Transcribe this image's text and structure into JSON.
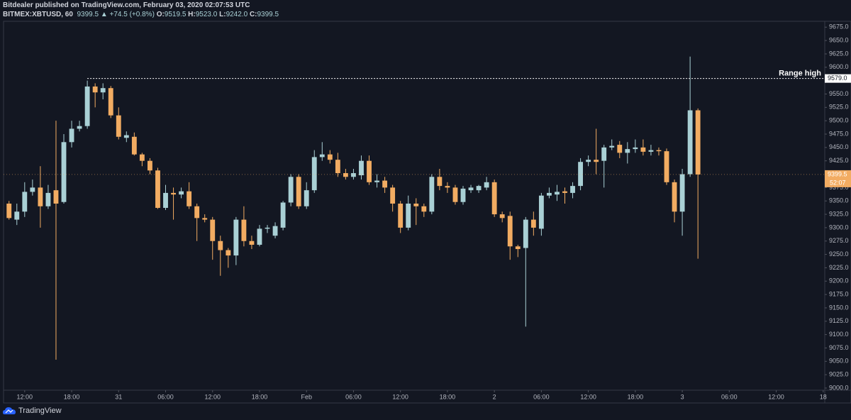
{
  "header": {
    "line1": "Bitdealer published on TradingView.com, February 03, 2020 02:07:53 UTC",
    "symbol": "BITMEX:XBTUSD, 60",
    "last": "9399.5",
    "change": "▲ +74.5 (+0.8%)",
    "ohlc": [
      {
        "k": "O:",
        "v": "9519.5"
      },
      {
        "k": "H:",
        "v": "9523.0"
      },
      {
        "k": "L:",
        "v": "9242.0"
      },
      {
        "k": "C:",
        "v": "9399.5"
      }
    ]
  },
  "footer": {
    "brand": "TradingView"
  },
  "chart_data": {
    "type": "candlestick",
    "up_color": "#a9d0d5",
    "down_color": "#f2ac62",
    "x": [
      10,
      11,
      12,
      13,
      14,
      15,
      16,
      17,
      18,
      19,
      20,
      21,
      22,
      23,
      24,
      25,
      26,
      27,
      28,
      29,
      30,
      31,
      32,
      33,
      34,
      35,
      36,
      37,
      38,
      39,
      40,
      41,
      42,
      43,
      44,
      45,
      46,
      47,
      48,
      49,
      50,
      51,
      52,
      53,
      54,
      55,
      56,
      57,
      58,
      59,
      60,
      61,
      62,
      63,
      64,
      65,
      66,
      67,
      68,
      69,
      70,
      71,
      72,
      73,
      74,
      75,
      76,
      77,
      78,
      79,
      80,
      81,
      82,
      83,
      84,
      85,
      86,
      87,
      88,
      89,
      90,
      91,
      92,
      93,
      94,
      95,
      96,
      97,
      98
    ],
    "open": [
      9345,
      9315,
      9330,
      9367,
      9375,
      9340,
      9370,
      9348,
      9460,
      9485,
      9490,
      9564,
      9553,
      9561,
      9510,
      9468,
      9470,
      9437,
      9425,
      9407,
      9337,
      9365,
      9362,
      9368,
      9340,
      9318,
      9315,
      9275,
      9258,
      9248,
      9315,
      9275,
      9268,
      9298,
      9285,
      9300,
      9347,
      9395,
      9340,
      9370,
      9432,
      9437,
      9427,
      9402,
      9395,
      9398,
      9425,
      9385,
      9388,
      9375,
      9345,
      9300,
      9345,
      9340,
      9330,
      9395,
      9378,
      9375,
      9348,
      9370,
      9370,
      9375,
      9385,
      9325,
      9322,
      9265,
      9262,
      9315,
      9298,
      9360,
      9362,
      9368,
      9365,
      9378,
      9423,
      9427,
      9425,
      9450,
      9455,
      9440,
      9447,
      9450,
      9442,
      9445,
      9443,
      9385,
      9330,
      9400,
      9519.5
    ],
    "high": [
      9350,
      9345,
      9385,
      9390,
      9415,
      9380,
      9500,
      9475,
      9500,
      9500,
      9575,
      9570,
      9570,
      9565,
      9525,
      9480,
      9478,
      9440,
      9430,
      9412,
      9380,
      9375,
      9375,
      9385,
      9345,
      9325,
      9320,
      9285,
      9262,
      9320,
      9340,
      9285,
      9305,
      9305,
      9310,
      9350,
      9400,
      9400,
      9385,
      9445,
      9460,
      9445,
      9440,
      9410,
      9410,
      9435,
      9435,
      9400,
      9395,
      9380,
      9350,
      9360,
      9355,
      9345,
      9400,
      9410,
      9385,
      9380,
      9378,
      9380,
      9380,
      9395,
      9390,
      9330,
      9330,
      9268,
      9320,
      9330,
      9365,
      9375,
      9380,
      9375,
      9385,
      9430,
      9435,
      9485,
      9455,
      9465,
      9462,
      9460,
      9465,
      9465,
      9455,
      9450,
      9448,
      9390,
      9410,
      9620,
      9523
    ],
    "low": [
      9315,
      9305,
      9320,
      9360,
      9300,
      9335,
      9053,
      9345,
      9450,
      9480,
      9485,
      9525,
      9540,
      9505,
      9465,
      9460,
      9435,
      9415,
      9400,
      9335,
      9333,
      9315,
      9355,
      9335,
      9275,
      9310,
      9240,
      9210,
      9225,
      9230,
      9265,
      9260,
      9265,
      9290,
      9280,
      9295,
      9340,
      9335,
      9335,
      9365,
      9425,
      9420,
      9395,
      9390,
      9390,
      9390,
      9380,
      9375,
      9365,
      9330,
      9290,
      9295,
      9305,
      9320,
      9325,
      9370,
      9365,
      9343,
      9343,
      9365,
      9365,
      9370,
      9320,
      9310,
      9240,
      9245,
      9115,
      9285,
      9285,
      9355,
      9350,
      9345,
      9355,
      9370,
      9415,
      9400,
      9375,
      9445,
      9430,
      9420,
      9440,
      9435,
      9435,
      9435,
      9380,
      9310,
      9285,
      9395,
      9242
    ],
    "close": [
      9318,
      9330,
      9367,
      9375,
      9340,
      9365,
      9345,
      9460,
      9485,
      9490,
      9564,
      9553,
      9561,
      9510,
      9470,
      9473,
      9437,
      9425,
      9407,
      9337,
      9365,
      9362,
      9368,
      9340,
      9318,
      9315,
      9275,
      9258,
      9248,
      9315,
      9275,
      9268,
      9298,
      9300,
      9303,
      9347,
      9395,
      9340,
      9370,
      9432,
      9437,
      9427,
      9402,
      9395,
      9402,
      9425,
      9385,
      9388,
      9375,
      9345,
      9300,
      9345,
      9340,
      9330,
      9395,
      9378,
      9375,
      9348,
      9373,
      9375,
      9378,
      9385,
      9325,
      9318,
      9265,
      9260,
      9315,
      9300,
      9360,
      9365,
      9367,
      9365,
      9378,
      9423,
      9427,
      9423,
      9450,
      9453,
      9440,
      9447,
      9450,
      9442,
      9445,
      9443,
      9385,
      9330,
      9400,
      9519.5,
      9399.5
    ],
    "xlim": [
      9.3,
      114.2
    ],
    "xticks": [
      {
        "value": 12,
        "label": "12:00"
      },
      {
        "value": 18,
        "label": "18:00"
      },
      {
        "value": 24,
        "label": "31"
      },
      {
        "value": 30,
        "label": "06:00"
      },
      {
        "value": 36,
        "label": "12:00"
      },
      {
        "value": 42,
        "label": "18:00"
      },
      {
        "value": 48,
        "label": "Feb"
      },
      {
        "value": 54,
        "label": "06:00"
      },
      {
        "value": 60,
        "label": "12:00"
      },
      {
        "value": 66,
        "label": "18:00"
      },
      {
        "value": 72,
        "label": "2"
      },
      {
        "value": 78,
        "label": "06:00"
      },
      {
        "value": 84,
        "label": "12:00"
      },
      {
        "value": 90,
        "label": "18:00"
      },
      {
        "value": 96,
        "label": "3"
      },
      {
        "value": 102,
        "label": "06:00"
      },
      {
        "value": 108,
        "label": "12:00"
      },
      {
        "value": 114,
        "label": "18"
      }
    ],
    "ylim": [
      8996,
      9686
    ],
    "yticks": [
      {
        "value": 9000,
        "label": "9000.0"
      },
      {
        "value": 9025,
        "label": "9025.0"
      },
      {
        "value": 9050,
        "label": "9050.0"
      },
      {
        "value": 9075,
        "label": "9075.0"
      },
      {
        "value": 9100,
        "label": "9100.0"
      },
      {
        "value": 9125,
        "label": "9125.0"
      },
      {
        "value": 9150,
        "label": "9150.0"
      },
      {
        "value": 9175,
        "label": "9175.0"
      },
      {
        "value": 9200,
        "label": "9200.0"
      },
      {
        "value": 9225,
        "label": "9225.0"
      },
      {
        "value": 9250,
        "label": "9250.0"
      },
      {
        "value": 9275,
        "label": "9275.0"
      },
      {
        "value": 9300,
        "label": "9300.0"
      },
      {
        "value": 9325,
        "label": "9325.0"
      },
      {
        "value": 9350,
        "label": "9350.0"
      },
      {
        "value": 9375,
        "label": "9375.0"
      },
      {
        "value": 9400,
        "label": "9400.0"
      },
      {
        "value": 9425,
        "label": "9425.0"
      },
      {
        "value": 9450,
        "label": "9450.0"
      },
      {
        "value": 9475,
        "label": "9475.0"
      },
      {
        "value": 9500,
        "label": "9500.0"
      },
      {
        "value": 9525,
        "label": "9525.0"
      },
      {
        "value": 9550,
        "label": "9550.0"
      },
      {
        "value": 9575,
        "label": "9575.0"
      },
      {
        "value": 9600,
        "label": "9600.0"
      },
      {
        "value": 9625,
        "label": "9625.0"
      },
      {
        "value": 9650,
        "label": "9650.0"
      },
      {
        "value": 9675,
        "label": "9675.0"
      }
    ],
    "range_high": {
      "value": 9579,
      "label": "9579.0",
      "x_start": 20,
      "text": "Range high"
    },
    "last_price": 9399.5,
    "countdown": "52:07"
  }
}
